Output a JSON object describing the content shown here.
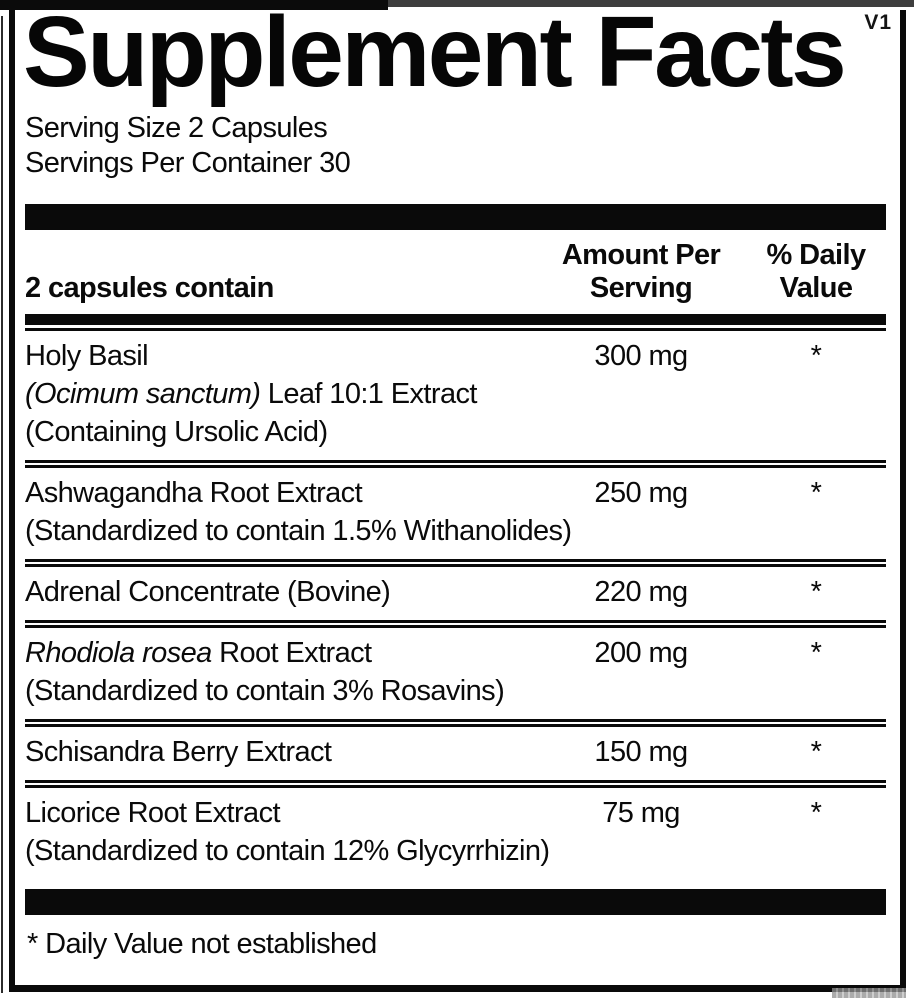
{
  "version_tag": "V1",
  "title": "Supplement Facts",
  "serving": {
    "size": "Serving Size 2 Capsules",
    "per_container": "Servings Per Container 30"
  },
  "table": {
    "header": {
      "col1": "2 capsules contain",
      "col2_line1": "Amount Per",
      "col2_line2": "Serving",
      "col3_line1": "% Daily",
      "col3_line2": "Value"
    },
    "rows": [
      {
        "name": [
          {
            "t": "Holy Basil"
          }
        ],
        "sublines": [
          [
            {
              "t": "(Ocimum sanctum)",
              "i": true
            },
            {
              "t": " Leaf 10:1 Extract"
            }
          ],
          [
            {
              "t": "(Containing Ursolic Acid)"
            }
          ]
        ],
        "amount": "300 mg",
        "daily_value": "*"
      },
      {
        "name": [
          {
            "t": "Ashwagandha Root Extract"
          }
        ],
        "sublines": [
          [
            {
              "t": "(Standardized to contain 1.5% Withanolides)"
            }
          ]
        ],
        "amount": "250 mg",
        "daily_value": "*"
      },
      {
        "name": [
          {
            "t": "Adrenal Concentrate (Bovine)"
          }
        ],
        "sublines": [],
        "amount": "220 mg",
        "daily_value": "*"
      },
      {
        "name": [
          {
            "t": "Rhodiola rosea",
            "i": true
          },
          {
            "t": " Root Extract"
          }
        ],
        "sublines": [
          [
            {
              "t": "(Standardized to contain 3% Rosavins)"
            }
          ]
        ],
        "amount": "200 mg",
        "daily_value": "*"
      },
      {
        "name": [
          {
            "t": "Schisandra Berry Extract"
          }
        ],
        "sublines": [],
        "amount": "150 mg",
        "daily_value": "*"
      },
      {
        "name": [
          {
            "t": "Licorice Root Extract"
          }
        ],
        "sublines": [
          [
            {
              "t": "(Standardized to contain 12% Glycyrrhizin)"
            }
          ]
        ],
        "amount": "75 mg",
        "daily_value": "*"
      }
    ]
  },
  "footnote": "* Daily Value not established",
  "colors": {
    "ink": "#0a0a0a",
    "background": "#ffffff",
    "top_bar_right_segment": "#3e3e3e"
  }
}
